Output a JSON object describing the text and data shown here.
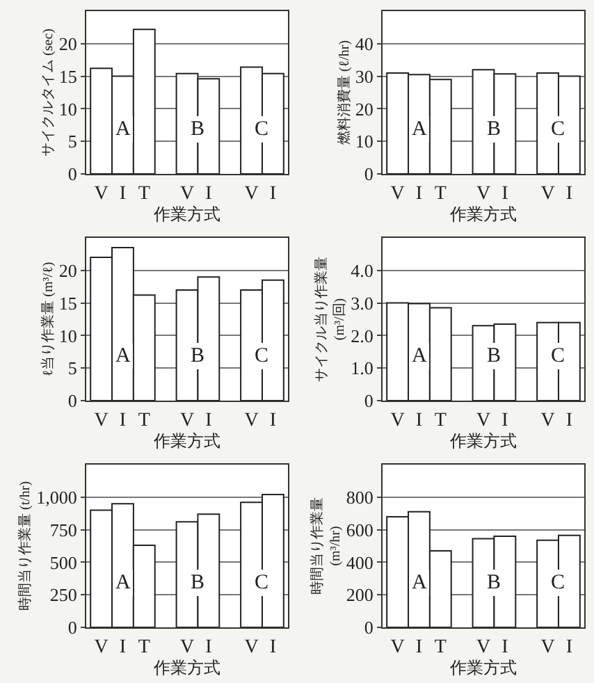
{
  "chart_data": [
    {
      "type": "bar",
      "categories": [
        "V",
        "I",
        "T",
        null,
        "V",
        "I",
        null,
        "V",
        "I"
      ],
      "values": [
        16.2,
        15.0,
        22.2,
        null,
        15.4,
        14.6,
        null,
        16.4,
        15.4
      ],
      "color": "#ffffff",
      "ylim": [
        0,
        25
      ],
      "yticks": [
        0,
        5,
        10,
        15,
        20
      ],
      "grid": "y",
      "xlabel": "作業方式",
      "ylabel": "サイクルタイム (sec)",
      "annotations": [
        "A",
        "B",
        "C"
      ]
    },
    {
      "type": "bar",
      "categories": [
        "V",
        "I",
        "T",
        null,
        "V",
        "I",
        null,
        "V",
        "I"
      ],
      "values": [
        31,
        30.5,
        29,
        null,
        32,
        30.7,
        null,
        31,
        30
      ],
      "color": "#ffffff",
      "ylim": [
        0,
        50
      ],
      "yticks": [
        0,
        10,
        20,
        30,
        40
      ],
      "grid": "y",
      "xlabel": "作業方式",
      "ylabel": "燃料消費量 (ℓ/hr)",
      "annotations": [
        "A",
        "B",
        "C"
      ]
    },
    {
      "type": "bar",
      "categories": [
        "V",
        "I",
        "T",
        null,
        "V",
        "I",
        null,
        "V",
        "I"
      ],
      "values": [
        22,
        23.5,
        16.2,
        null,
        17,
        19,
        null,
        17,
        18.5
      ],
      "color": "#ffffff",
      "ylim": [
        0,
        25
      ],
      "yticks": [
        0,
        5,
        10,
        15,
        20
      ],
      "grid": "y",
      "xlabel": "作業方式",
      "ylabel": "ℓ当り作業量 (m³/ℓ)",
      "annotations": [
        "A",
        "B",
        "C"
      ]
    },
    {
      "type": "bar",
      "categories": [
        "V",
        "I",
        "T",
        null,
        "V",
        "I",
        null,
        "V",
        "I"
      ],
      "values": [
        3.0,
        2.98,
        2.85,
        null,
        2.3,
        2.35,
        null,
        2.4,
        2.4
      ],
      "color": "#ffffff",
      "ylim": [
        0,
        5
      ],
      "yticks": [
        0,
        {
          "value": 1,
          "label": "1.0"
        },
        {
          "value": 2,
          "label": "2.0"
        },
        {
          "value": 3,
          "label": "3.0"
        },
        {
          "value": 4,
          "label": "4.0"
        }
      ],
      "grid": "y",
      "xlabel": "作業方式",
      "ylabel": "サイクル当り作業量\n(m³/回)",
      "annotations": [
        "A",
        "B",
        "C"
      ]
    },
    {
      "type": "bar",
      "categories": [
        "V",
        "I",
        "T",
        null,
        "V",
        "I",
        null,
        "V",
        "I"
      ],
      "values": [
        900,
        950,
        630,
        null,
        810,
        870,
        null,
        960,
        1020
      ],
      "color": "#ffffff",
      "ylim": [
        0,
        1250
      ],
      "yticks": [
        0,
        250,
        500,
        750,
        {
          "value": 1000,
          "label": "1,000"
        }
      ],
      "grid": "y",
      "xlabel": "作業方式",
      "ylabel": "時間当り作業量 (t/hr)",
      "annotations": [
        "A",
        "B",
        "C"
      ]
    },
    {
      "type": "bar",
      "categories": [
        "V",
        "I",
        "T",
        null,
        "V",
        "I",
        null,
        "V",
        "I"
      ],
      "values": [
        680,
        710,
        470,
        null,
        545,
        560,
        null,
        535,
        565
      ],
      "color": "#ffffff",
      "ylim": [
        0,
        1000
      ],
      "yticks": [
        0,
        200,
        400,
        600,
        800
      ],
      "grid": "y",
      "xlabel": "作業方式",
      "ylabel": "時間当り作業量\n(m³/hr)",
      "annotations": [
        "A",
        "B",
        "C"
      ]
    }
  ]
}
